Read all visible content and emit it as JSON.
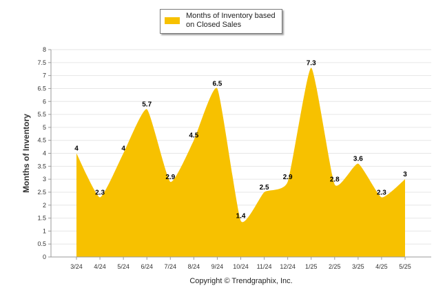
{
  "chart_data": {
    "type": "area",
    "title": "",
    "xlabel": "",
    "ylabel": "Months of Inventory",
    "ylim": [
      0,
      8
    ],
    "ytick_step": 0.5,
    "grid": true,
    "legend_position": "top-center",
    "categories": [
      "3/24",
      "4/24",
      "5/24",
      "6/24",
      "7/24",
      "8/24",
      "9/24",
      "10/24",
      "11/24",
      "12/24",
      "1/25",
      "2/25",
      "3/25",
      "4/25",
      "5/25"
    ],
    "series": [
      {
        "name": "Months of Inventory based on Closed Sales",
        "values": [
          4,
          2.3,
          4,
          5.7,
          2.9,
          4.5,
          6.5,
          1.4,
          2.5,
          2.9,
          7.3,
          2.8,
          3.6,
          2.3,
          3
        ],
        "color": "#f7c100"
      }
    ]
  },
  "legend": {
    "label": "Months of Inventory based on Closed Sales"
  },
  "footer": {
    "copyright": "Copyright © Trendgraphix, Inc."
  }
}
